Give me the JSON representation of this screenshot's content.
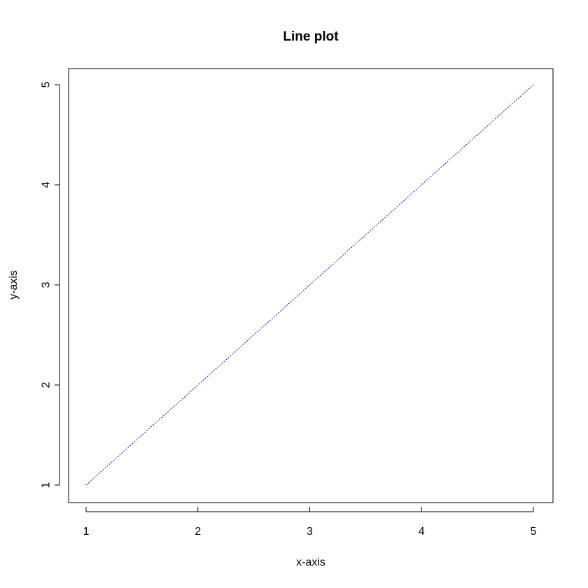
{
  "chart_data": {
    "type": "line",
    "title": "Line plot",
    "xlabel": "x-axis",
    "ylabel": "y-axis",
    "x": [
      1,
      2,
      3,
      4,
      5
    ],
    "series": [
      {
        "values": [
          1,
          2,
          3,
          4,
          5
        ],
        "color": "#0000ff",
        "line_style": "dotted"
      }
    ],
    "xlim": [
      1,
      5
    ],
    "ylim": [
      1,
      5
    ],
    "x_ticks": [
      "1",
      "2",
      "3",
      "4",
      "5"
    ],
    "y_ticks": [
      "1",
      "2",
      "3",
      "4",
      "5"
    ],
    "grid": false,
    "legend": "none"
  }
}
